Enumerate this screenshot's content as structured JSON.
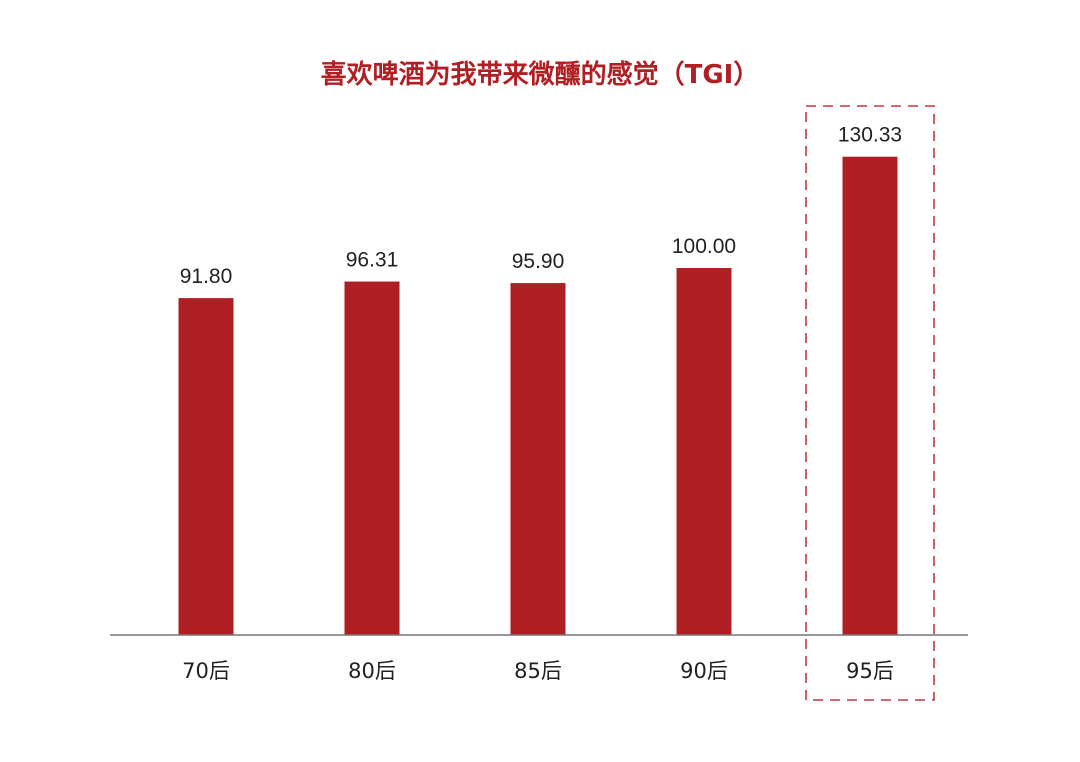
{
  "colors": {
    "bar": "#B01F24",
    "title": "#B01F24",
    "axis": "#777777",
    "highlight": "#C0393E"
  },
  "chart_data": {
    "type": "bar",
    "title": "喜欢啤酒为我带来微醺的感觉（TGI）",
    "categories": [
      "70后",
      "80后",
      "85后",
      "90后",
      "95后"
    ],
    "values": [
      91.8,
      96.31,
      95.9,
      100.0,
      130.33
    ],
    "value_labels": [
      "91.80",
      "96.31",
      "95.90",
      "100.00",
      "130.33"
    ],
    "highlighted_category": "95后",
    "xlabel": "",
    "ylabel": "",
    "ylim": [
      0,
      140
    ],
    "grid": false,
    "legend": "none"
  }
}
